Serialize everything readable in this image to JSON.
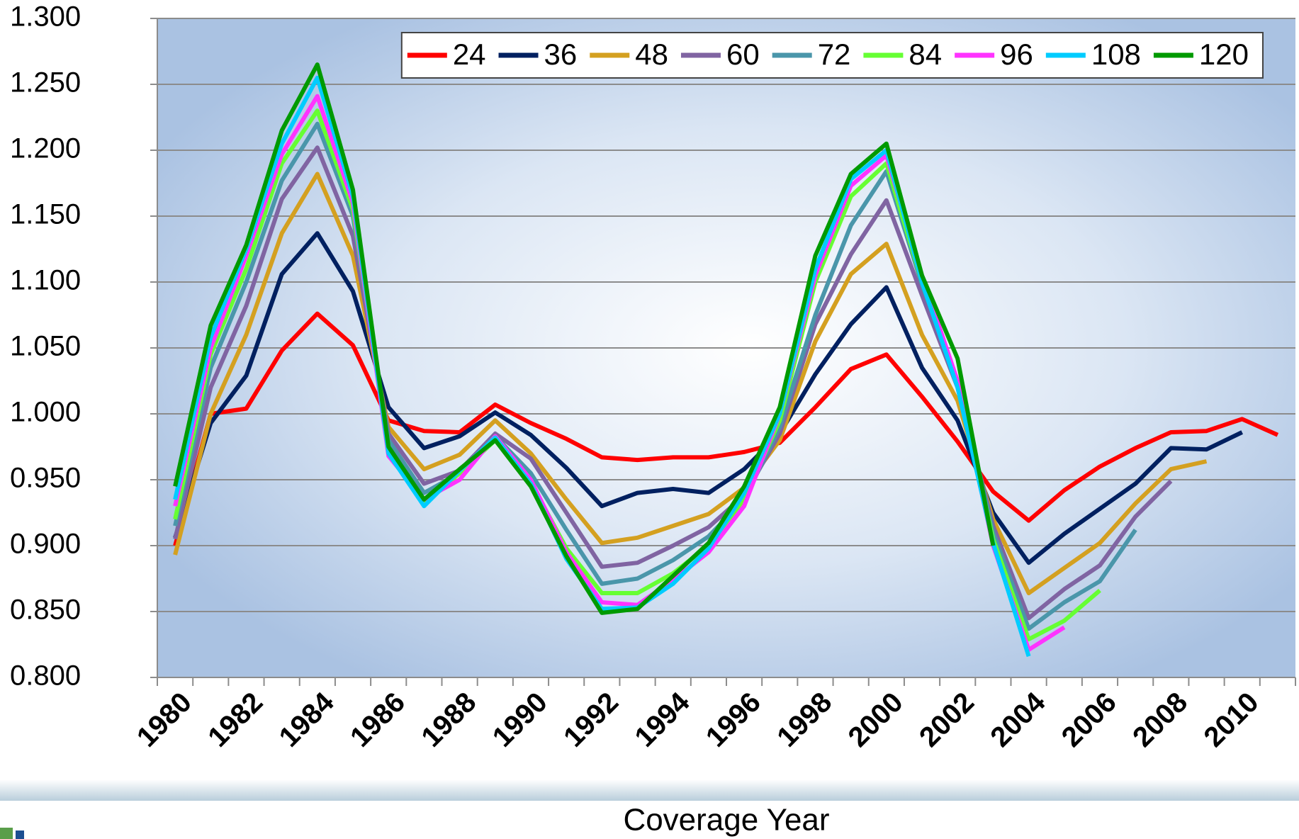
{
  "chart_data": {
    "type": "line",
    "x_label": "Coverage Year",
    "categories": [
      "1980",
      null,
      "1982",
      null,
      "1984",
      null,
      "1986",
      null,
      "1988",
      null,
      "1990",
      null,
      "1992",
      null,
      "1994",
      null,
      "1996",
      null,
      "1998",
      null,
      "2000",
      null,
      "2002",
      null,
      "2004",
      null,
      "2006",
      null,
      "2008",
      null,
      "2010",
      null
    ],
    "series": [
      {
        "name": "24",
        "color": "#ff0000",
        "values": [
          0.9,
          1.0,
          1.004,
          1.048,
          1.076,
          1.052,
          0.995,
          0.987,
          0.986,
          1.007,
          0.993,
          0.981,
          0.967,
          0.965,
          0.967,
          0.967,
          0.971,
          0.978,
          1.005,
          1.034,
          1.045,
          1.013,
          0.979,
          0.941,
          0.919,
          0.942,
          0.96,
          0.974,
          0.986,
          0.987,
          0.996,
          0.984
        ]
      },
      {
        "name": "36",
        "color": "#002060",
        "values": [
          0.906,
          0.993,
          1.029,
          1.106,
          1.137,
          1.093,
          1.005,
          0.974,
          0.983,
          1.001,
          0.984,
          0.959,
          0.93,
          0.94,
          0.943,
          0.94,
          0.958,
          0.985,
          1.03,
          1.068,
          1.096,
          1.035,
          0.995,
          0.925,
          0.887,
          0.909,
          0.928,
          0.947,
          0.974,
          0.973,
          0.986,
          null
        ]
      },
      {
        "name": "48",
        "color": "#d4a020",
        "values": [
          0.893,
          1.0,
          1.06,
          1.137,
          1.182,
          1.12,
          0.99,
          0.958,
          0.969,
          0.995,
          0.97,
          0.935,
          0.902,
          0.906,
          0.915,
          0.924,
          0.944,
          0.98,
          1.055,
          1.106,
          1.129,
          1.06,
          1.01,
          0.92,
          0.864,
          0.883,
          0.902,
          0.932,
          0.958,
          0.964,
          null,
          null
        ]
      },
      {
        "name": "60",
        "color": "#8064a2",
        "values": [
          0.905,
          1.02,
          1.082,
          1.163,
          1.202,
          1.135,
          0.985,
          0.947,
          0.957,
          0.985,
          0.966,
          0.925,
          0.884,
          0.887,
          0.9,
          0.914,
          0.938,
          0.985,
          1.068,
          1.121,
          1.162,
          1.09,
          1.02,
          0.915,
          0.845,
          0.867,
          0.885,
          0.922,
          0.949,
          null,
          null,
          null
        ]
      },
      {
        "name": "72",
        "color": "#4a96aa",
        "values": [
          0.915,
          1.035,
          1.1,
          1.177,
          1.22,
          1.15,
          0.98,
          0.94,
          0.955,
          0.983,
          0.955,
          0.912,
          0.871,
          0.875,
          0.889,
          0.907,
          0.935,
          0.99,
          1.075,
          1.143,
          1.184,
          1.098,
          1.025,
          0.91,
          0.837,
          0.857,
          0.873,
          0.912,
          null,
          null,
          null,
          null
        ]
      },
      {
        "name": "84",
        "color": "#66ff33",
        "values": [
          0.92,
          1.045,
          1.11,
          1.19,
          1.23,
          1.155,
          0.975,
          0.932,
          0.955,
          0.98,
          0.948,
          0.898,
          0.864,
          0.864,
          0.879,
          0.9,
          0.935,
          0.995,
          1.1,
          1.165,
          1.19,
          1.1,
          1.025,
          0.905,
          0.829,
          0.843,
          0.866,
          null,
          null,
          null,
          null,
          null
        ]
      },
      {
        "name": "96",
        "color": "#ff33ff",
        "values": [
          0.93,
          1.05,
          1.12,
          1.197,
          1.241,
          1.16,
          0.968,
          0.935,
          0.95,
          0.983,
          0.95,
          0.895,
          0.857,
          0.855,
          0.874,
          0.895,
          0.93,
          1.0,
          1.105,
          1.173,
          1.196,
          1.105,
          1.025,
          0.9,
          0.821,
          0.838,
          null,
          null,
          null,
          null,
          null,
          null
        ]
      },
      {
        "name": "108",
        "color": "#00ccff",
        "values": [
          0.935,
          1.058,
          1.125,
          1.205,
          1.255,
          1.165,
          0.97,
          0.93,
          0.957,
          0.982,
          0.947,
          0.89,
          0.852,
          0.853,
          0.871,
          0.898,
          0.94,
          1.0,
          1.11,
          1.178,
          1.2,
          1.1,
          1.02,
          0.902,
          0.816,
          null,
          null,
          null,
          null,
          null,
          null,
          null
        ]
      },
      {
        "name": "120",
        "color": "#009a00",
        "values": [
          0.945,
          1.067,
          1.128,
          1.215,
          1.265,
          1.17,
          0.975,
          0.935,
          0.958,
          0.98,
          0.945,
          0.892,
          0.849,
          0.852,
          0.877,
          0.902,
          0.945,
          1.005,
          1.12,
          1.182,
          1.205,
          1.105,
          1.042,
          0.9,
          null,
          null,
          null,
          null,
          null,
          null,
          null,
          null
        ]
      }
    ],
    "ylim": [
      0.8,
      1.3
    ],
    "yticks": [
      {
        "value": 0.8,
        "label": "0.800"
      },
      {
        "value": 0.85,
        "label": "0.850"
      },
      {
        "value": 0.9,
        "label": "0.900"
      },
      {
        "value": 0.95,
        "label": "0.950"
      },
      {
        "value": 1.0,
        "label": "1.000"
      },
      {
        "value": 1.05,
        "label": "1.050"
      },
      {
        "value": 1.1,
        "label": "1.100"
      },
      {
        "value": 1.15,
        "label": "1.150"
      },
      {
        "value": 1.2,
        "label": "1.200"
      },
      {
        "value": 1.25,
        "label": "1.250"
      },
      {
        "value": 1.3,
        "label": "1.300"
      }
    ],
    "grid": true,
    "legend": "top-right"
  }
}
